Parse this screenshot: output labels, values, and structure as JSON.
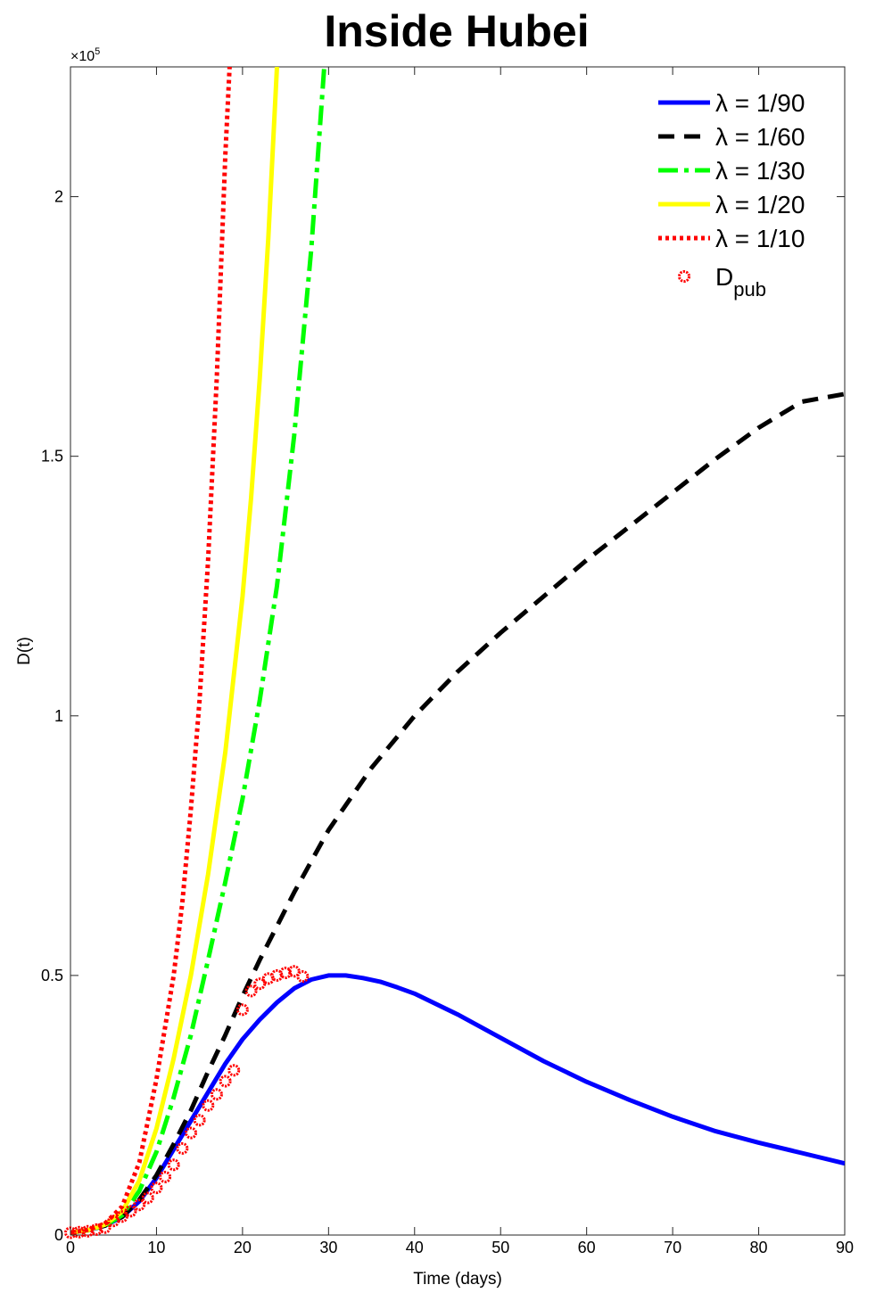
{
  "chart_data": {
    "type": "line",
    "title": "Inside Hubei",
    "xlabel": "Time (days)",
    "ylabel": "D(t)",
    "xlim": [
      0,
      90
    ],
    "ylim": [
      0,
      225000
    ],
    "y_exponent_label": "×10^5",
    "x_ticks": [
      0,
      10,
      20,
      30,
      40,
      50,
      60,
      70,
      80,
      90
    ],
    "x_tick_labels": [
      "0",
      "10",
      "20",
      "30",
      "40",
      "50",
      "60",
      "70",
      "80",
      "90"
    ],
    "y_ticks": [
      0,
      50000,
      100000,
      150000,
      200000
    ],
    "y_tick_labels": [
      "0",
      "0.5",
      "1",
      "1.5",
      "2"
    ],
    "grid": false,
    "legend_position": "top-right",
    "series": [
      {
        "name": "λ = 1/90",
        "color": "#0000ff",
        "style": "solid",
        "x": [
          0,
          2,
          4,
          6,
          8,
          10,
          12,
          14,
          16,
          18,
          20,
          22,
          24,
          26,
          28,
          30,
          32,
          34,
          36,
          38,
          40,
          45,
          50,
          55,
          60,
          65,
          70,
          75,
          80,
          85,
          90
        ],
        "y": [
          500,
          900,
          1800,
          3500,
          6500,
          11000,
          16500,
          22000,
          27500,
          33000,
          37700,
          41500,
          44800,
          47500,
          49200,
          50000,
          50000,
          49500,
          48800,
          47700,
          46500,
          42500,
          38000,
          33500,
          29500,
          26000,
          22800,
          20000,
          17800,
          15800,
          13800
        ]
      },
      {
        "name": "λ = 1/60",
        "color": "#000000",
        "style": "dashed",
        "x": [
          0,
          2,
          4,
          6,
          8,
          10,
          12,
          14,
          16,
          18,
          20,
          22,
          24,
          26,
          28,
          30,
          35,
          40,
          45,
          50,
          55,
          60,
          65,
          70,
          75,
          80,
          85,
          90
        ],
        "y": [
          500,
          900,
          1800,
          3500,
          6800,
          11500,
          17500,
          24000,
          31500,
          38500,
          46000,
          53000,
          59500,
          66000,
          72000,
          78000,
          90000,
          100000,
          108500,
          116000,
          123000,
          130000,
          136500,
          143000,
          149500,
          155500,
          160500,
          162000
        ]
      },
      {
        "name": "λ = 1/30",
        "color": "#00ff00",
        "style": "dashdot",
        "x": [
          0,
          2,
          4,
          6,
          8,
          10,
          12,
          14,
          16,
          18,
          20,
          22,
          24,
          26,
          28,
          29.5
        ],
        "y": [
          500,
          900,
          1800,
          3800,
          8500,
          16000,
          26500,
          38500,
          53000,
          68000,
          84000,
          103000,
          125000,
          154000,
          190000,
          225000
        ]
      },
      {
        "name": "λ = 1/20",
        "color": "#ffff00",
        "style": "solid",
        "x": [
          0,
          2,
          4,
          6,
          8,
          10,
          12,
          14,
          16,
          18,
          20,
          21,
          22,
          23,
          24
        ],
        "y": [
          500,
          900,
          2000,
          4500,
          10500,
          20500,
          34000,
          50000,
          69500,
          93000,
          123000,
          142000,
          165000,
          192000,
          225000
        ]
      },
      {
        "name": "λ = 1/10",
        "color": "#ff0000",
        "style": "dotted",
        "x": [
          0,
          2,
          4,
          6,
          8,
          10,
          12,
          13,
          14,
          15,
          16,
          17,
          18,
          18.5
        ],
        "y": [
          500,
          1000,
          2200,
          5500,
          14000,
          30000,
          50000,
          64000,
          82000,
          103000,
          130000,
          165000,
          208000,
          225000
        ]
      }
    ],
    "observed": {
      "name": "D_pub",
      "color": "#ff0000",
      "marker": "open-circle-flower",
      "x": [
        0,
        1,
        2,
        3,
        4,
        5,
        6,
        7,
        8,
        9,
        10,
        11,
        12,
        13,
        14,
        15,
        16,
        17,
        18,
        19,
        20,
        21,
        22,
        23,
        24,
        25,
        26,
        27
      ],
      "y": [
        444,
        549,
        729,
        1052,
        1423,
        2714,
        3554,
        4586,
        5806,
        7153,
        9074,
        11177,
        13522,
        16678,
        19665,
        22112,
        24953,
        27100,
        29631,
        31728,
        43400,
        47000,
        48400,
        49400,
        50000,
        50500,
        50800,
        49800
      ]
    }
  }
}
